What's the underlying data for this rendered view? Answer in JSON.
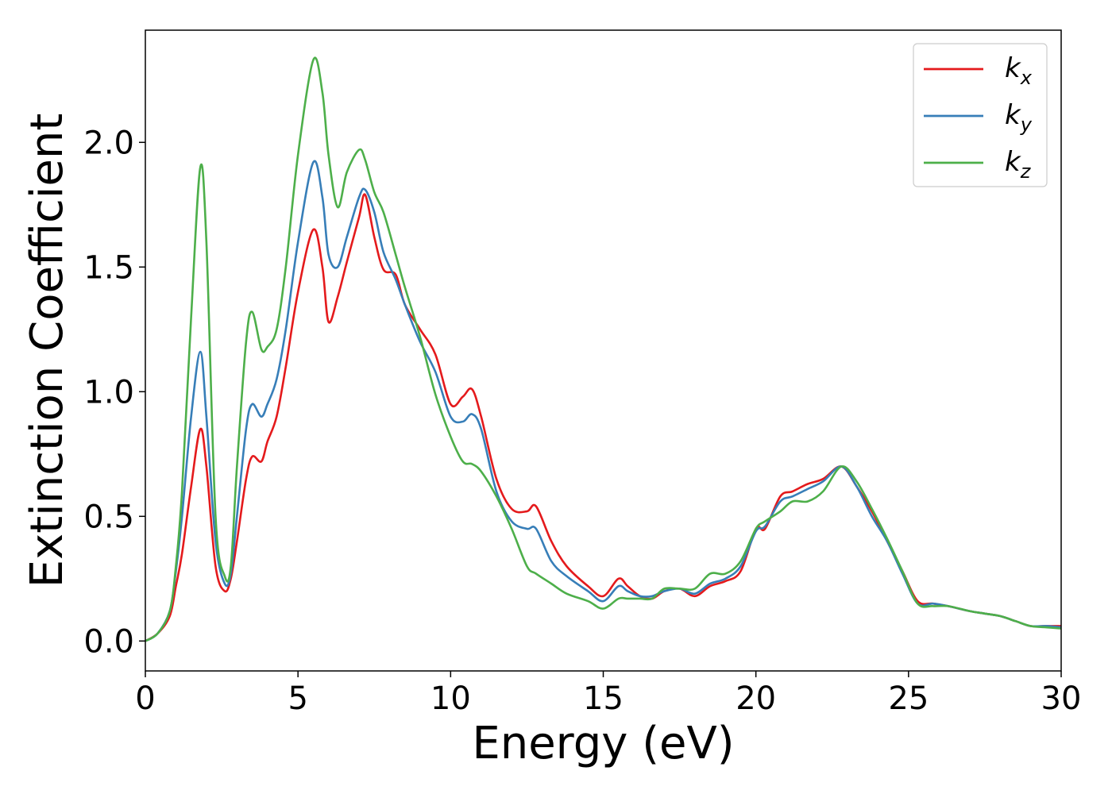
{
  "chart_data": {
    "type": "line",
    "xlabel": "Energy (eV)",
    "ylabel": "Extinction Coefficient",
    "xlim": [
      0,
      30
    ],
    "ylim": [
      -0.12,
      2.45
    ],
    "xticks": [
      0,
      5,
      10,
      15,
      20,
      25,
      30
    ],
    "xtick_labels": [
      "0",
      "5",
      "10",
      "15",
      "20",
      "25",
      "30"
    ],
    "yticks": [
      0.0,
      0.5,
      1.0,
      1.5,
      2.0
    ],
    "ytick_labels": [
      "0.0",
      "0.5",
      "1.0",
      "1.5",
      "2.0"
    ],
    "grid": false,
    "legend_position": "top-right",
    "series": [
      {
        "name": "k_x",
        "color": "#e41a1c",
        "x": [
          0,
          0.4,
          0.8,
          1.0,
          1.2,
          1.5,
          1.8,
          2.0,
          2.3,
          2.6,
          2.8,
          3.0,
          3.3,
          3.5,
          3.8,
          4.0,
          4.3,
          4.6,
          5.0,
          5.5,
          5.8,
          6.0,
          6.3,
          6.6,
          7.0,
          7.2,
          7.5,
          7.8,
          8.2,
          8.5,
          9.0,
          9.5,
          10.0,
          10.4,
          10.7,
          11.0,
          11.5,
          12.0,
          12.5,
          12.8,
          13.3,
          13.8,
          14.5,
          15.0,
          15.5,
          15.8,
          16.2,
          16.6,
          17.0,
          17.5,
          18.0,
          18.5,
          19.0,
          19.5,
          20.0,
          20.3,
          20.8,
          21.2,
          21.7,
          22.2,
          22.8,
          23.3,
          23.8,
          24.3,
          24.8,
          25.3,
          25.8,
          26.3,
          27.0,
          27.5,
          28.0,
          28.5,
          29.0,
          29.5,
          30.0
        ],
        "y": [
          0.0,
          0.03,
          0.1,
          0.22,
          0.35,
          0.62,
          0.85,
          0.7,
          0.3,
          0.2,
          0.25,
          0.4,
          0.65,
          0.74,
          0.72,
          0.8,
          0.9,
          1.1,
          1.4,
          1.65,
          1.5,
          1.28,
          1.38,
          1.52,
          1.7,
          1.79,
          1.62,
          1.49,
          1.47,
          1.35,
          1.25,
          1.15,
          0.95,
          0.98,
          1.01,
          0.9,
          0.65,
          0.53,
          0.52,
          0.54,
          0.4,
          0.3,
          0.22,
          0.18,
          0.25,
          0.22,
          0.18,
          0.17,
          0.2,
          0.21,
          0.18,
          0.22,
          0.24,
          0.28,
          0.45,
          0.45,
          0.58,
          0.6,
          0.63,
          0.65,
          0.7,
          0.62,
          0.52,
          0.4,
          0.28,
          0.16,
          0.15,
          0.14,
          0.12,
          0.11,
          0.1,
          0.08,
          0.06,
          0.06,
          0.06
        ]
      },
      {
        "name": "k_y",
        "color": "#377eb8",
        "x": [
          0,
          0.4,
          0.8,
          1.0,
          1.2,
          1.5,
          1.8,
          2.0,
          2.3,
          2.6,
          2.8,
          3.0,
          3.3,
          3.5,
          3.8,
          4.0,
          4.3,
          4.6,
          5.0,
          5.5,
          5.8,
          6.0,
          6.3,
          6.6,
          7.0,
          7.2,
          7.5,
          7.8,
          8.2,
          8.5,
          9.0,
          9.5,
          10.0,
          10.4,
          10.7,
          11.0,
          11.5,
          12.0,
          12.5,
          12.8,
          13.3,
          13.8,
          14.5,
          15.0,
          15.5,
          15.8,
          16.2,
          16.6,
          17.0,
          17.5,
          18.0,
          18.5,
          19.0,
          19.5,
          20.0,
          20.3,
          20.8,
          21.2,
          21.7,
          22.2,
          22.8,
          23.3,
          23.8,
          24.3,
          24.8,
          25.3,
          25.8,
          26.3,
          27.0,
          27.5,
          28.0,
          28.5,
          29.0,
          29.5,
          30.0
        ],
        "y": [
          0.0,
          0.03,
          0.12,
          0.28,
          0.5,
          0.9,
          1.16,
          0.9,
          0.4,
          0.23,
          0.27,
          0.5,
          0.85,
          0.95,
          0.9,
          0.95,
          1.05,
          1.25,
          1.6,
          1.92,
          1.78,
          1.55,
          1.5,
          1.62,
          1.78,
          1.81,
          1.72,
          1.56,
          1.45,
          1.35,
          1.2,
          1.08,
          0.9,
          0.88,
          0.91,
          0.85,
          0.6,
          0.48,
          0.45,
          0.45,
          0.32,
          0.26,
          0.2,
          0.16,
          0.22,
          0.2,
          0.18,
          0.18,
          0.2,
          0.21,
          0.19,
          0.23,
          0.25,
          0.3,
          0.44,
          0.46,
          0.56,
          0.58,
          0.61,
          0.64,
          0.7,
          0.62,
          0.5,
          0.4,
          0.27,
          0.15,
          0.15,
          0.14,
          0.12,
          0.11,
          0.1,
          0.08,
          0.06,
          0.06,
          0.055
        ]
      },
      {
        "name": "k_z",
        "color": "#4daf4a",
        "x": [
          0,
          0.4,
          0.8,
          1.0,
          1.2,
          1.5,
          1.8,
          2.0,
          2.3,
          2.6,
          2.8,
          3.0,
          3.3,
          3.5,
          3.8,
          4.0,
          4.3,
          4.6,
          5.0,
          5.5,
          5.8,
          6.0,
          6.3,
          6.6,
          7.0,
          7.2,
          7.5,
          7.8,
          8.2,
          8.5,
          9.0,
          9.5,
          10.0,
          10.4,
          10.7,
          11.0,
          11.5,
          12.0,
          12.5,
          12.8,
          13.3,
          13.8,
          14.5,
          15.0,
          15.5,
          15.8,
          16.2,
          16.6,
          17.0,
          17.5,
          18.0,
          18.5,
          19.0,
          19.5,
          20.0,
          20.3,
          20.8,
          21.2,
          21.7,
          22.2,
          22.8,
          23.3,
          23.8,
          24.3,
          24.8,
          25.3,
          25.8,
          26.3,
          27.0,
          27.5,
          28.0,
          28.5,
          29.0,
          29.5,
          30.0
        ],
        "y": [
          0.0,
          0.03,
          0.12,
          0.3,
          0.6,
          1.3,
          1.9,
          1.6,
          0.5,
          0.26,
          0.3,
          0.7,
          1.2,
          1.32,
          1.17,
          1.18,
          1.25,
          1.5,
          1.95,
          2.33,
          2.2,
          1.95,
          1.74,
          1.88,
          1.97,
          1.93,
          1.8,
          1.72,
          1.55,
          1.42,
          1.22,
          0.99,
          0.82,
          0.72,
          0.71,
          0.68,
          0.58,
          0.45,
          0.3,
          0.27,
          0.23,
          0.19,
          0.16,
          0.13,
          0.17,
          0.17,
          0.17,
          0.17,
          0.21,
          0.21,
          0.21,
          0.27,
          0.27,
          0.32,
          0.45,
          0.48,
          0.52,
          0.56,
          0.56,
          0.6,
          0.7,
          0.64,
          0.53,
          0.41,
          0.28,
          0.15,
          0.14,
          0.14,
          0.12,
          0.11,
          0.1,
          0.08,
          0.06,
          0.055,
          0.05
        ]
      }
    ]
  }
}
